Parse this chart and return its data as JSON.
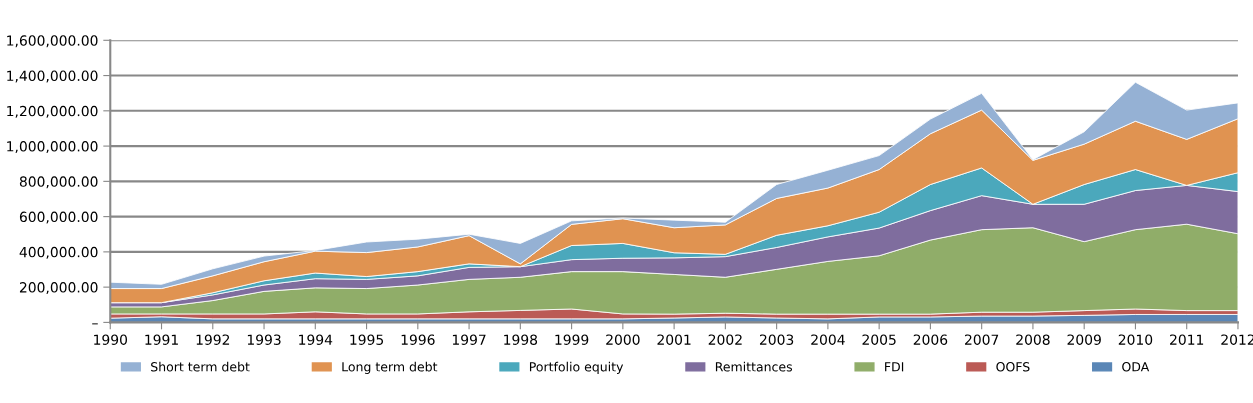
{
  "chart_data": {
    "type": "area",
    "stacked": true,
    "x": [
      1990,
      1991,
      1992,
      1993,
      1994,
      1995,
      1996,
      1997,
      1998,
      1999,
      2000,
      2001,
      2002,
      2003,
      2004,
      2005,
      2006,
      2007,
      2008,
      2009,
      2010,
      2011,
      2012
    ],
    "series": [
      {
        "name": "ODA",
        "color": "#5a86b6",
        "values": [
          24000,
          32000,
          20000,
          20000,
          20000,
          20000,
          20000,
          20000,
          20000,
          20000,
          20000,
          25000,
          31000,
          25000,
          20000,
          31000,
          31000,
          36000,
          36000,
          40000,
          45000,
          45000,
          45000
        ]
      },
      {
        "name": "OOFS",
        "color": "#bb5a55",
        "values": [
          24000,
          16000,
          28000,
          28000,
          40000,
          28000,
          28000,
          40000,
          48000,
          56000,
          28000,
          22000,
          21000,
          22000,
          27000,
          16000,
          16000,
          22000,
          22000,
          27000,
          31000,
          22000,
          22000
        ]
      },
      {
        "name": "FDI",
        "color": "#90ad69",
        "values": [
          40000,
          40000,
          76000,
          128000,
          136000,
          144000,
          164000,
          184000,
          188000,
          212000,
          240000,
          225000,
          204000,
          254000,
          299000,
          331000,
          420000,
          468000,
          479000,
          391000,
          450000,
          490000,
          436000
        ]
      },
      {
        "name": "Remittances",
        "color": "#7f6d9e",
        "values": [
          24000,
          24000,
          32000,
          36000,
          52000,
          52000,
          52000,
          68000,
          60000,
          68000,
          76000,
          94000,
          117000,
          124000,
          139000,
          157000,
          167000,
          193000,
          133000,
          212000,
          222000,
          220000,
          239000
        ]
      },
      {
        "name": "Portfolio equity",
        "color": "#4ba8bc",
        "values": [
          0,
          0,
          12000,
          24000,
          32000,
          16000,
          24000,
          20000,
          0,
          80000,
          84000,
          29000,
          13000,
          69000,
          63000,
          90000,
          148000,
          157000,
          0,
          112000,
          119000,
          0,
          107000
        ]
      },
      {
        "name": "Long term debt",
        "color": "#e09351",
        "values": [
          80000,
          80000,
          96000,
          108000,
          124000,
          136000,
          140000,
          160000,
          16000,
          120000,
          140000,
          142000,
          167000,
          209000,
          214000,
          242000,
          288000,
          328000,
          249000,
          229000,
          274000,
          261000,
          306000
        ]
      },
      {
        "name": "Short term debt",
        "color": "#95b1d4",
        "values": [
          36000,
          24000,
          40000,
          32000,
          4000,
          60000,
          44000,
          8000,
          116000,
          20000,
          4000,
          43000,
          15000,
          79000,
          101000,
          79000,
          83000,
          95000,
          4000,
          70000,
          221000,
          166000,
          90000
        ]
      }
    ],
    "xlim": [
      1990,
      2012
    ],
    "xticks": [
      1990,
      1991,
      1992,
      1993,
      1994,
      1995,
      1996,
      1997,
      1998,
      1999,
      2000,
      2001,
      2002,
      2003,
      2004,
      2005,
      2006,
      2007,
      2008,
      2009,
      2010,
      2011,
      2012
    ],
    "ylim": [
      0,
      1600000
    ],
    "yticks": [
      {
        "value": 0,
        "label": "–"
      },
      {
        "value": 200000,
        "label": "200,000.00"
      },
      {
        "value": 400000,
        "label": "400,000.00"
      },
      {
        "value": 600000,
        "label": "600,000.00"
      },
      {
        "value": 800000,
        "label": "800,000.00"
      },
      {
        "value": 1000000,
        "label": "1,000,000.00"
      },
      {
        "value": 1200000,
        "label": "1,200,000.00"
      },
      {
        "value": 1400000,
        "label": "1,400,000.00"
      },
      {
        "value": 1600000,
        "label": "1,600,000.00"
      }
    ],
    "grid": "y",
    "legend": "bottom"
  }
}
